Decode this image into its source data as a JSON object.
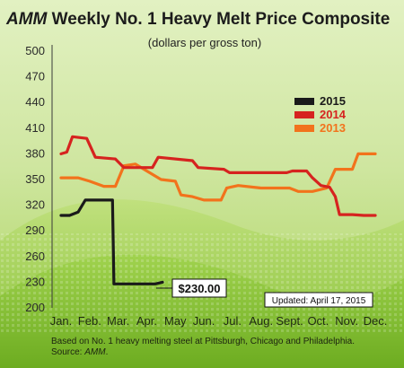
{
  "title_prefix": "AMM",
  "title_rest": " Weekly No. 1 Heavy Melt Price Composite",
  "subtitle": "(dollars per gross ton)",
  "callout_label": "$230.00",
  "updated_label": "Updated: April 17, 2015",
  "footnote_line1": "Based on No. 1 heavy melting steel at Pittsburgh, Chicago and Philadelphia.",
  "footnote_source_prefix": "Source: ",
  "footnote_source_name": "AMM",
  "footnote_source_suffix": ".",
  "colors": {
    "bg_top": "#d8ecb0",
    "bg_bottom": "#8cc43a",
    "series_2015": "#1a1a1a",
    "series_2014": "#d6231f",
    "series_2013": "#f2731c"
  },
  "chart_data": {
    "type": "line",
    "title": "AMM Weekly No. 1 Heavy Melt Price Composite",
    "subtitle": "(dollars per gross ton)",
    "xlabel": "",
    "ylabel": "",
    "ylim": [
      200,
      500
    ],
    "yticks": [
      200,
      230,
      260,
      290,
      320,
      350,
      380,
      410,
      440,
      470,
      500
    ],
    "xticks": [
      "Jan.",
      "Feb.",
      "Mar.",
      "Apr.",
      "May",
      "Jun.",
      "Jul.",
      "Aug.",
      "Sept.",
      "Oct.",
      "Nov.",
      "Dec."
    ],
    "grid": false,
    "legend": "top-right",
    "series": [
      {
        "name": "2015",
        "color": "#1a1a1a",
        "points": [
          [
            1,
            308
          ],
          [
            1.3,
            308
          ],
          [
            1.6,
            312
          ],
          [
            1.85,
            326
          ],
          [
            2.8,
            326
          ],
          [
            2.85,
            228
          ],
          [
            3.5,
            228
          ],
          [
            4.3,
            228
          ],
          [
            4.55,
            230
          ]
        ]
      },
      {
        "name": "2014",
        "color": "#d6231f",
        "points": [
          [
            1,
            380
          ],
          [
            1.2,
            382
          ],
          [
            1.4,
            400
          ],
          [
            1.9,
            398
          ],
          [
            2.2,
            376
          ],
          [
            2.9,
            374
          ],
          [
            3.2,
            364
          ],
          [
            4.2,
            364
          ],
          [
            4.4,
            376
          ],
          [
            5.6,
            372
          ],
          [
            5.8,
            364
          ],
          [
            6.7,
            362
          ],
          [
            6.9,
            358
          ],
          [
            8.9,
            358
          ],
          [
            9.1,
            360
          ],
          [
            9.6,
            360
          ],
          [
            9.8,
            352
          ],
          [
            10.1,
            343
          ],
          [
            10.4,
            341
          ],
          [
            10.6,
            330
          ],
          [
            10.75,
            309
          ],
          [
            11.2,
            309
          ],
          [
            11.6,
            308
          ],
          [
            12,
            308
          ]
        ]
      },
      {
        "name": "2013",
        "color": "#f2731c",
        "points": [
          [
            1,
            352
          ],
          [
            1.6,
            352
          ],
          [
            2.0,
            348
          ],
          [
            2.5,
            342
          ],
          [
            2.9,
            342
          ],
          [
            3.2,
            366
          ],
          [
            3.6,
            368
          ],
          [
            4.0,
            360
          ],
          [
            4.5,
            350
          ],
          [
            5.0,
            348
          ],
          [
            5.2,
            332
          ],
          [
            5.6,
            330
          ],
          [
            6.0,
            326
          ],
          [
            6.6,
            326
          ],
          [
            6.8,
            340
          ],
          [
            7.2,
            343
          ],
          [
            8.0,
            340
          ],
          [
            9.0,
            340
          ],
          [
            9.3,
            336
          ],
          [
            9.8,
            336
          ],
          [
            10.3,
            340
          ],
          [
            10.6,
            362
          ],
          [
            11.2,
            362
          ],
          [
            11.4,
            380
          ],
          [
            12,
            380
          ]
        ]
      }
    ]
  }
}
